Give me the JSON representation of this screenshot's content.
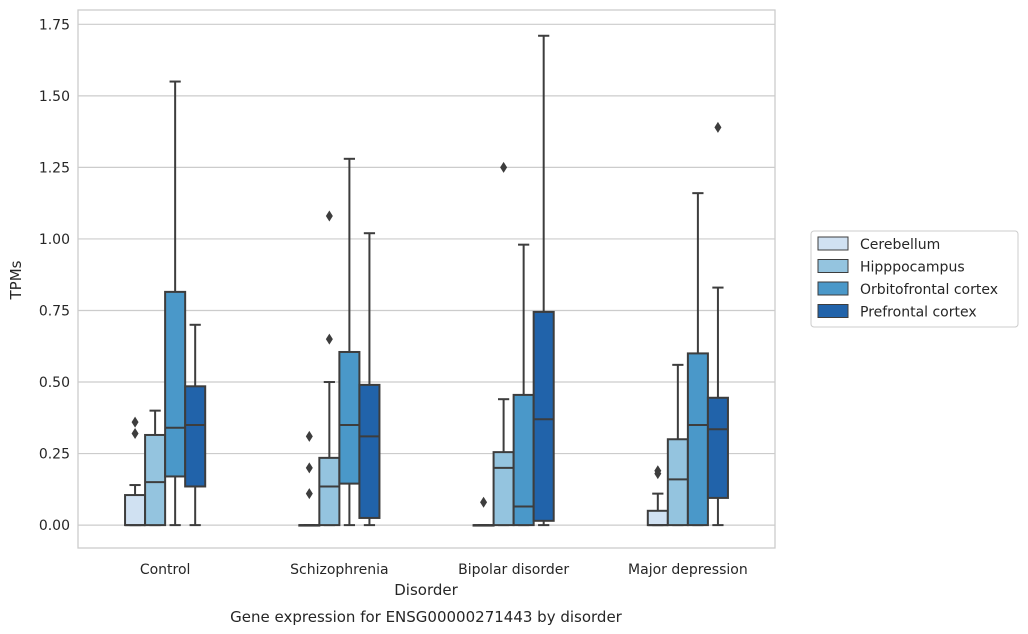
{
  "chart_data": {
    "type": "box",
    "title": "Gene expression for ENSG00000271443 by disorder",
    "xlabel": "Disorder",
    "ylabel": "TPMs",
    "ylim": [
      -0.08,
      1.8
    ],
    "yticks": [
      "0.00",
      "0.25",
      "0.50",
      "0.75",
      "1.00",
      "1.25",
      "1.50",
      "1.75"
    ],
    "grid": "horizontal",
    "legend_position": "right",
    "categories": [
      "Control",
      "Schizophrenia",
      "Bipolar disorder",
      "Major depression"
    ],
    "series": [
      {
        "name": "Cerebellum",
        "color": "#d0e1f2",
        "boxes": [
          {
            "min": 0.0,
            "q1": 0.0,
            "median": 0.0,
            "q3": 0.105,
            "max": 0.14,
            "outliers": [
              0.32,
              0.36
            ]
          },
          {
            "min": 0.0,
            "q1": 0.0,
            "median": 0.0,
            "q3": 0.0,
            "max": 0.0,
            "outliers": [
              0.11,
              0.2,
              0.31
            ]
          },
          {
            "min": 0.0,
            "q1": 0.0,
            "median": 0.0,
            "q3": 0.0,
            "max": 0.0,
            "outliers": [
              0.08
            ]
          },
          {
            "min": 0.0,
            "q1": 0.0,
            "median": 0.0,
            "q3": 0.05,
            "max": 0.11,
            "outliers": [
              0.18,
              0.19
            ]
          }
        ]
      },
      {
        "name": "Hipppocampus",
        "color": "#94c4df",
        "boxes": [
          {
            "min": 0.0,
            "q1": 0.0,
            "median": 0.15,
            "q3": 0.315,
            "max": 0.4,
            "outliers": []
          },
          {
            "min": 0.0,
            "q1": 0.0,
            "median": 0.135,
            "q3": 0.235,
            "max": 0.5,
            "outliers": [
              0.65,
              1.08
            ]
          },
          {
            "min": 0.0,
            "q1": 0.0,
            "median": 0.2,
            "q3": 0.255,
            "max": 0.44,
            "outliers": [
              1.25
            ]
          },
          {
            "min": 0.0,
            "q1": 0.0,
            "median": 0.16,
            "q3": 0.3,
            "max": 0.56,
            "outliers": []
          }
        ]
      },
      {
        "name": "Orbitofrontal cortex",
        "color": "#4a98c9",
        "boxes": [
          {
            "min": 0.0,
            "q1": 0.17,
            "median": 0.34,
            "q3": 0.815,
            "max": 1.55,
            "outliers": []
          },
          {
            "min": 0.0,
            "q1": 0.145,
            "median": 0.35,
            "q3": 0.605,
            "max": 1.28,
            "outliers": []
          },
          {
            "min": 0.0,
            "q1": 0.0,
            "median": 0.065,
            "q3": 0.455,
            "max": 0.98,
            "outliers": []
          },
          {
            "min": 0.0,
            "q1": 0.0,
            "median": 0.35,
            "q3": 0.6,
            "max": 1.16,
            "outliers": []
          }
        ]
      },
      {
        "name": "Prefrontal cortex",
        "color": "#2163aa",
        "boxes": [
          {
            "min": 0.0,
            "q1": 0.135,
            "median": 0.35,
            "q3": 0.485,
            "max": 0.7,
            "outliers": []
          },
          {
            "min": 0.0,
            "q1": 0.025,
            "median": 0.31,
            "q3": 0.49,
            "max": 1.02,
            "outliers": []
          },
          {
            "min": 0.0,
            "q1": 0.015,
            "median": 0.37,
            "q3": 0.745,
            "max": 1.71,
            "outliers": []
          },
          {
            "min": 0.0,
            "q1": 0.095,
            "median": 0.335,
            "q3": 0.445,
            "max": 0.83,
            "outliers": [
              1.39
            ]
          }
        ]
      }
    ]
  }
}
